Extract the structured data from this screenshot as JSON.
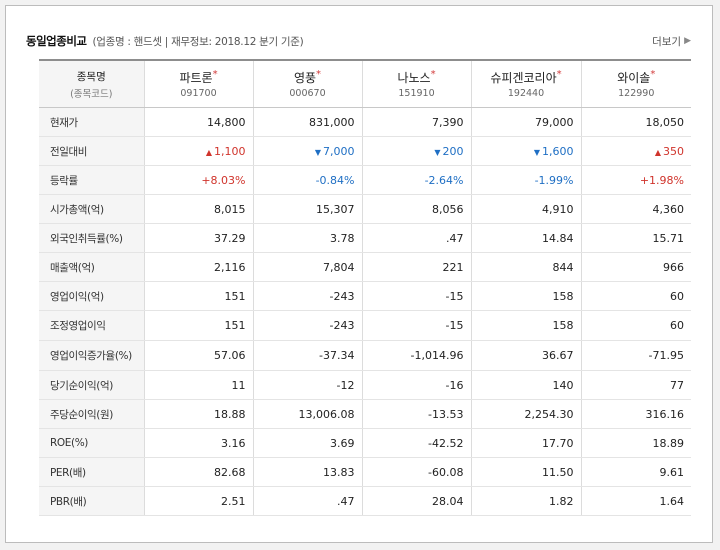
{
  "header": {
    "title": "동일업종비교",
    "info": "(업종명 : 핸드셋 | 재무정보: 2018.12 분기 기준)",
    "more": "더보기"
  },
  "table": {
    "corner": {
      "label": "종목명",
      "sub": "(종목코드)"
    },
    "companies": [
      {
        "name": "파트론",
        "code": "091700"
      },
      {
        "name": "영풍",
        "code": "000670"
      },
      {
        "name": "나노스",
        "code": "151910"
      },
      {
        "name": "슈피겐코리아",
        "code": "192440"
      },
      {
        "name": "와이솔",
        "code": "122990"
      }
    ],
    "rows": [
      {
        "label": "현재가",
        "values": [
          "14,800",
          "831,000",
          "7,390",
          "79,000",
          "18,050"
        ]
      },
      {
        "label": "전일대비",
        "values": [
          "1,100",
          "7,000",
          "200",
          "1,600",
          "350"
        ],
        "dirs": [
          "up",
          "down",
          "down",
          "down",
          "up"
        ]
      },
      {
        "label": "등락률",
        "values": [
          "+8.03%",
          "-0.84%",
          "-2.64%",
          "-1.99%",
          "+1.98%"
        ],
        "dirs": [
          "up",
          "down",
          "down",
          "down",
          "up"
        ]
      },
      {
        "label": "시가총액(억)",
        "values": [
          "8,015",
          "15,307",
          "8,056",
          "4,910",
          "4,360"
        ]
      },
      {
        "label": "외국인취득률(%)",
        "values": [
          "37.29",
          "3.78",
          ".47",
          "14.84",
          "15.71"
        ]
      },
      {
        "label": "매출액(억)",
        "values": [
          "2,116",
          "7,804",
          "221",
          "844",
          "966"
        ]
      },
      {
        "label": "영업이익(억)",
        "values": [
          "151",
          "-243",
          "-15",
          "158",
          "60"
        ]
      },
      {
        "label": "조정영업이익",
        "values": [
          "151",
          "-243",
          "-15",
          "158",
          "60"
        ]
      },
      {
        "label": "영업이익증가율(%)",
        "values": [
          "57.06",
          "-37.34",
          "-1,014.96",
          "36.67",
          "-71.95"
        ]
      },
      {
        "label": "당기순이익(억)",
        "values": [
          "11",
          "-12",
          "-16",
          "140",
          "77"
        ]
      },
      {
        "label": "주당순이익(원)",
        "values": [
          "18.88",
          "13,006.08",
          "-13.53",
          "2,254.30",
          "316.16"
        ]
      },
      {
        "label": "ROE(%)",
        "values": [
          "3.16",
          "3.69",
          "-42.52",
          "17.70",
          "18.89"
        ]
      },
      {
        "label": "PER(배)",
        "values": [
          "82.68",
          "13.83",
          "-60.08",
          "11.50",
          "9.61"
        ]
      },
      {
        "label": "PBR(배)",
        "values": [
          "2.51",
          ".47",
          "28.04",
          "1.82",
          "1.64"
        ]
      }
    ]
  },
  "icons": {
    "up": "triangle-up-icon",
    "down": "triangle-down-icon",
    "more": "chevron-right-icon"
  },
  "colors": {
    "up": "#d0342c",
    "down": "#1f6fc4",
    "star": "#d23b3b"
  }
}
